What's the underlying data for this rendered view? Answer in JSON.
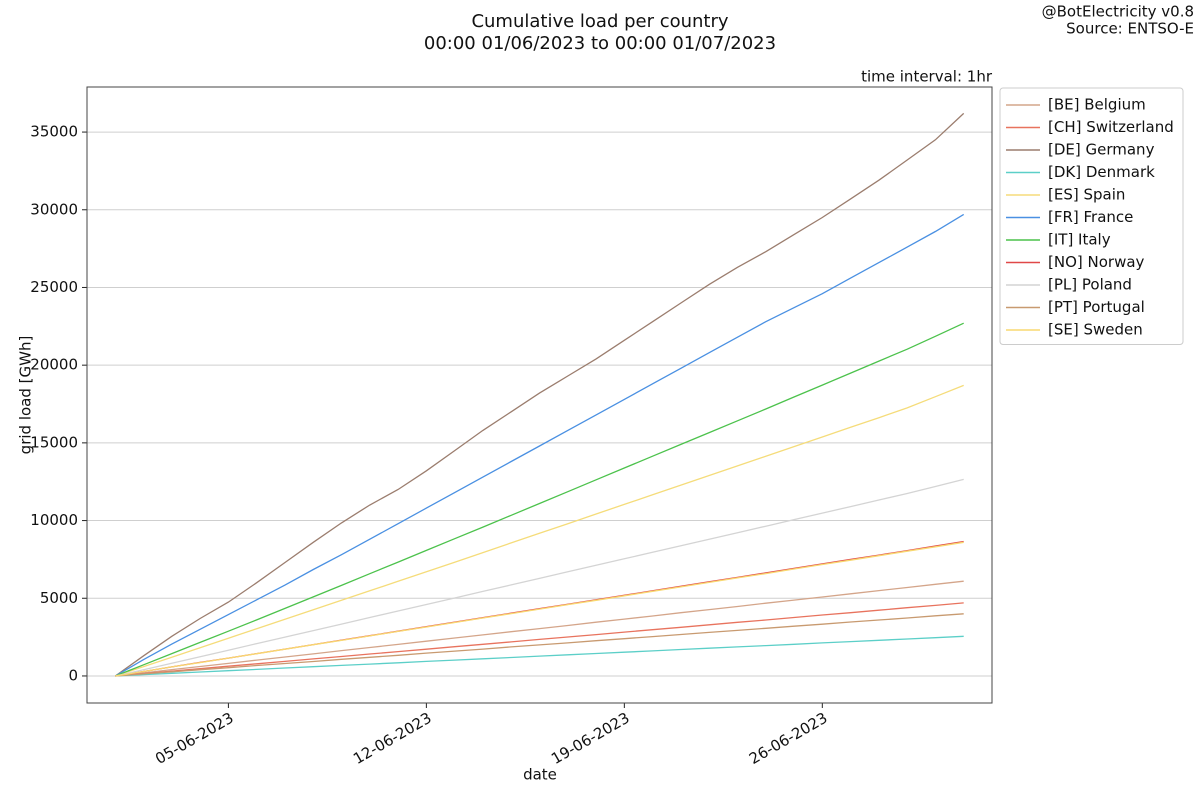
{
  "chart_data": {
    "type": "line",
    "title": "Cumulative load per country",
    "subtitle": "00:00 01/06/2023 to 00:00 01/07/2023",
    "annotations": [
      "@BotElectricity v0.8",
      "Source: ENTSO-E",
      "time interval: 1hr"
    ],
    "xlabel": "date",
    "ylabel": "grid load [GWh]",
    "x": [
      "01-06-2023",
      "02-06-2023",
      "03-06-2023",
      "04-06-2023",
      "05-06-2023",
      "06-06-2023",
      "07-06-2023",
      "08-06-2023",
      "09-06-2023",
      "10-06-2023",
      "11-06-2023",
      "12-06-2023",
      "13-06-2023",
      "14-06-2023",
      "15-06-2023",
      "16-06-2023",
      "17-06-2023",
      "18-06-2023",
      "19-06-2023",
      "20-06-2023",
      "21-06-2023",
      "22-06-2023",
      "23-06-2023",
      "24-06-2023",
      "25-06-2023",
      "26-06-2023",
      "27-06-2023",
      "28-06-2023",
      "29-06-2023",
      "30-06-2023",
      "01-07-2023"
    ],
    "xlim": [
      "31-05-2023",
      "02-07-2023"
    ],
    "xticks": [
      "05-06-2023",
      "12-06-2023",
      "19-06-2023",
      "26-06-2023"
    ],
    "ylim": [
      -1740,
      37900
    ],
    "yticks": [
      0,
      5000,
      10000,
      15000,
      20000,
      25000,
      30000,
      35000
    ],
    "grid": true,
    "legend": "outside-upper-right",
    "series": [
      {
        "name": "[BE] Belgium",
        "color": "#d4a58a",
        "values": [
          0,
          200,
          410,
          610,
          810,
          1020,
          1220,
          1420,
          1630,
          1830,
          2030,
          2240,
          2440,
          2640,
          2850,
          3050,
          3250,
          3460,
          3660,
          3860,
          4070,
          4270,
          4470,
          4680,
          4880,
          5080,
          5290,
          5490,
          5690,
          5900,
          6100
        ]
      },
      {
        "name": "[CH] Switzerland",
        "color": "#e8735e",
        "values": [
          0,
          160,
          310,
          470,
          630,
          780,
          940,
          1100,
          1250,
          1410,
          1570,
          1720,
          1880,
          2040,
          2190,
          2350,
          2510,
          2660,
          2820,
          2980,
          3130,
          3290,
          3450,
          3600,
          3760,
          3920,
          4070,
          4230,
          4390,
          4540,
          4700
        ]
      },
      {
        "name": "[DE] Germany",
        "color": "#9b7d6e",
        "values": [
          0,
          1300,
          2550,
          3700,
          4750,
          6000,
          7300,
          8600,
          9850,
          11000,
          12000,
          13200,
          14500,
          15800,
          17000,
          18200,
          19300,
          20400,
          21600,
          22800,
          24000,
          25200,
          26300,
          27300,
          28400,
          29500,
          30700,
          31900,
          33200,
          34500,
          36200
        ]
      },
      {
        "name": "[DK] Denmark",
        "color": "#5ccfc8",
        "values": [
          0,
          85,
          170,
          255,
          340,
          425,
          510,
          595,
          680,
          765,
          850,
          935,
          1020,
          1105,
          1190,
          1275,
          1360,
          1445,
          1530,
          1615,
          1700,
          1785,
          1870,
          1955,
          2040,
          2125,
          2210,
          2295,
          2380,
          2465,
          2550
        ]
      },
      {
        "name": "[ES] Spain",
        "color": "#f5dc7a",
        "values": [
          0,
          600,
          1210,
          1820,
          2430,
          3040,
          3650,
          4260,
          4870,
          5480,
          6090,
          6700,
          7320,
          7940,
          8560,
          9180,
          9800,
          10420,
          11040,
          11660,
          12280,
          12900,
          13520,
          14140,
          14760,
          15380,
          16000,
          16620,
          17250,
          17970,
          18700
        ]
      },
      {
        "name": "[FR] France",
        "color": "#4a90e2",
        "values": [
          0,
          1050,
          2050,
          3000,
          3950,
          4900,
          5850,
          6850,
          7800,
          8800,
          9800,
          10800,
          11800,
          12800,
          13800,
          14800,
          15800,
          16800,
          17800,
          18800,
          19800,
          20800,
          21800,
          22800,
          23700,
          24600,
          25600,
          26600,
          27600,
          28600,
          29700
        ]
      },
      {
        "name": "[IT] Italy",
        "color": "#4cc24c",
        "values": [
          0,
          720,
          1440,
          2160,
          2880,
          3610,
          4350,
          5090,
          5830,
          6580,
          7330,
          8080,
          8830,
          9580,
          10340,
          11100,
          11860,
          12620,
          13380,
          14140,
          14900,
          15660,
          16420,
          17180,
          17950,
          18720,
          19490,
          20260,
          21030,
          21860,
          22700
        ]
      },
      {
        "name": "[NO] Norway",
        "color": "#e04848",
        "values": [
          0,
          290,
          580,
          870,
          1150,
          1440,
          1730,
          2020,
          2310,
          2590,
          2880,
          3170,
          3460,
          3750,
          4040,
          4330,
          4610,
          4900,
          5190,
          5480,
          5770,
          6060,
          6340,
          6630,
          6920,
          7210,
          7500,
          7780,
          8070,
          8360,
          8650
        ]
      },
      {
        "name": "[PL] Poland",
        "color": "#d4d4d4",
        "values": [
          0,
          400,
          820,
          1240,
          1660,
          2080,
          2500,
          2920,
          3340,
          3760,
          4180,
          4600,
          5020,
          5440,
          5860,
          6280,
          6700,
          7120,
          7540,
          7960,
          8380,
          8800,
          9220,
          9640,
          10060,
          10480,
          10900,
          11320,
          11740,
          12190,
          12650
        ]
      },
      {
        "name": "[PT] Portugal",
        "color": "#c89a70",
        "values": [
          0,
          130,
          270,
          400,
          530,
          670,
          800,
          930,
          1070,
          1200,
          1330,
          1470,
          1600,
          1730,
          1870,
          2000,
          2130,
          2270,
          2400,
          2530,
          2670,
          2800,
          2930,
          3070,
          3200,
          3330,
          3470,
          3600,
          3730,
          3870,
          4000
        ]
      },
      {
        "name": "[SE] Sweden",
        "color": "#f8d870",
        "values": [
          0,
          290,
          580,
          860,
          1150,
          1430,
          1720,
          2010,
          2290,
          2580,
          2870,
          3150,
          3440,
          3730,
          4010,
          4300,
          4590,
          4870,
          5160,
          5450,
          5730,
          6020,
          6310,
          6590,
          6880,
          7170,
          7450,
          7740,
          8030,
          8310,
          8600
        ]
      }
    ]
  }
}
